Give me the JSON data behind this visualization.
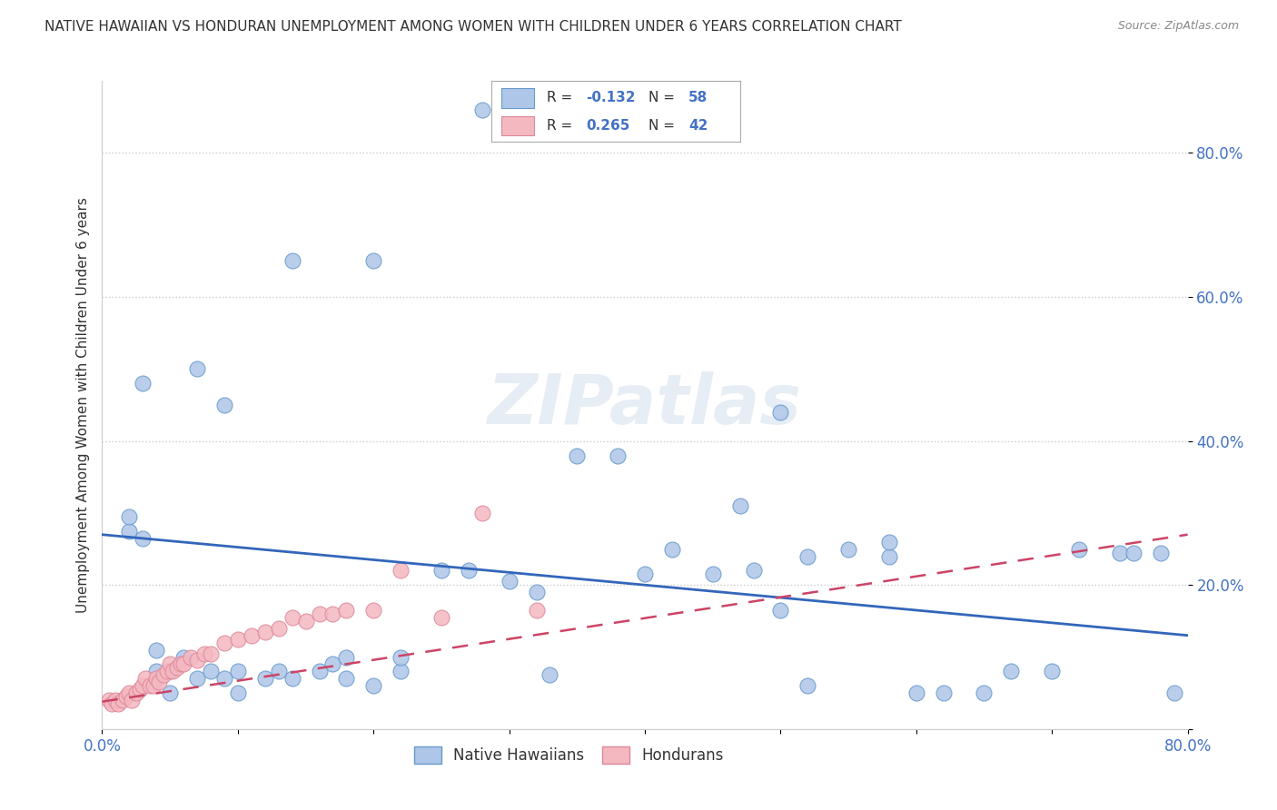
{
  "title": "NATIVE HAWAIIAN VS HONDURAN UNEMPLOYMENT AMONG WOMEN WITH CHILDREN UNDER 6 YEARS CORRELATION CHART",
  "source": "Source: ZipAtlas.com",
  "ylabel": "Unemployment Among Women with Children Under 6 years",
  "xlim": [
    0,
    0.8
  ],
  "ylim": [
    0,
    0.9
  ],
  "xtick_positions": [
    0.0,
    0.1,
    0.2,
    0.3,
    0.4,
    0.5,
    0.6,
    0.7,
    0.8
  ],
  "xticklabels": [
    "0.0%",
    "",
    "",
    "",
    "",
    "",
    "",
    "",
    "80.0%"
  ],
  "ytick_positions": [
    0.0,
    0.2,
    0.4,
    0.6,
    0.8
  ],
  "yticklabels": [
    "",
    "20.0%",
    "40.0%",
    "60.0%",
    "80.0%"
  ],
  "watermark": "ZIPatlas",
  "background_color": "#ffffff",
  "dot_color_blue": "#aec6e8",
  "dot_color_pink": "#f4b8c1",
  "dot_edge_blue": "#6699cc",
  "dot_edge_pink": "#dd8899",
  "trend_blue": "#3366bb",
  "trend_pink": "#cc4466",
  "title_color": "#333333",
  "axis_color": "#333333",
  "tick_color": "#4472c4",
  "grid_color": "#cccccc",
  "legend_r_color": "#4472c4",
  "legend_n_color": "#4472c4",
  "blue_line_x0": 0.0,
  "blue_line_y0": 0.27,
  "blue_line_x1": 0.8,
  "blue_line_y1": 0.13,
  "pink_line_x0": 0.0,
  "pink_line_y0": 0.038,
  "pink_line_x1": 0.8,
  "pink_line_y1": 0.27,
  "nh_x": [
    0.02,
    0.02,
    0.03,
    0.04,
    0.04,
    0.05,
    0.05,
    0.06,
    0.07,
    0.08,
    0.09,
    0.1,
    0.1,
    0.12,
    0.13,
    0.14,
    0.16,
    0.17,
    0.18,
    0.18,
    0.2,
    0.22,
    0.22,
    0.25,
    0.27,
    0.3,
    0.32,
    0.35,
    0.38,
    0.4,
    0.42,
    0.45,
    0.48,
    0.5,
    0.52,
    0.55,
    0.58,
    0.58,
    0.6,
    0.62,
    0.65,
    0.67,
    0.7,
    0.72,
    0.75,
    0.76,
    0.78,
    0.79,
    0.28,
    0.03,
    0.07,
    0.09,
    0.14,
    0.2,
    0.33,
    0.47,
    0.5,
    0.52
  ],
  "nh_y": [
    0.275,
    0.295,
    0.265,
    0.08,
    0.11,
    0.05,
    0.08,
    0.1,
    0.07,
    0.08,
    0.07,
    0.05,
    0.08,
    0.07,
    0.08,
    0.07,
    0.08,
    0.09,
    0.07,
    0.1,
    0.06,
    0.08,
    0.1,
    0.22,
    0.22,
    0.205,
    0.19,
    0.38,
    0.38,
    0.215,
    0.25,
    0.215,
    0.22,
    0.165,
    0.24,
    0.25,
    0.24,
    0.26,
    0.05,
    0.05,
    0.05,
    0.08,
    0.08,
    0.25,
    0.245,
    0.245,
    0.245,
    0.05,
    0.86,
    0.48,
    0.5,
    0.45,
    0.65,
    0.65,
    0.075,
    0.31,
    0.44,
    0.06
  ],
  "hond_x": [
    0.005,
    0.007,
    0.01,
    0.012,
    0.015,
    0.018,
    0.02,
    0.022,
    0.025,
    0.028,
    0.03,
    0.032,
    0.035,
    0.038,
    0.04,
    0.042,
    0.045,
    0.048,
    0.05,
    0.052,
    0.055,
    0.058,
    0.06,
    0.065,
    0.07,
    0.075,
    0.08,
    0.09,
    0.1,
    0.11,
    0.12,
    0.13,
    0.14,
    0.15,
    0.16,
    0.17,
    0.18,
    0.2,
    0.22,
    0.25,
    0.28,
    0.32
  ],
  "hond_y": [
    0.04,
    0.035,
    0.04,
    0.035,
    0.04,
    0.045,
    0.05,
    0.04,
    0.05,
    0.055,
    0.06,
    0.07,
    0.06,
    0.06,
    0.07,
    0.065,
    0.075,
    0.08,
    0.09,
    0.08,
    0.085,
    0.09,
    0.09,
    0.1,
    0.095,
    0.105,
    0.105,
    0.12,
    0.125,
    0.13,
    0.135,
    0.14,
    0.155,
    0.15,
    0.16,
    0.16,
    0.165,
    0.165,
    0.22,
    0.155,
    0.3,
    0.165
  ]
}
